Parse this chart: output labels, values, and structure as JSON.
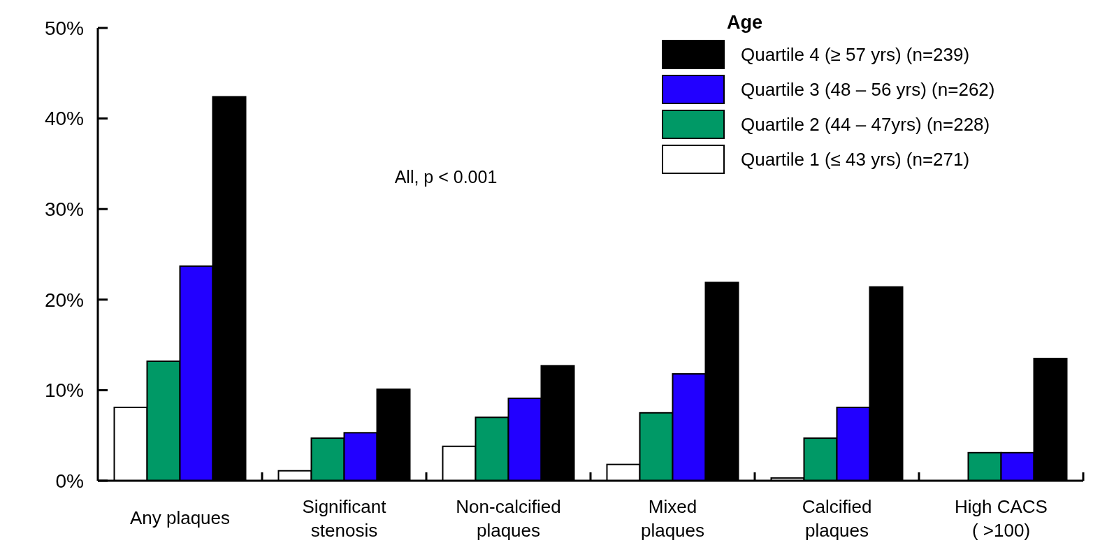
{
  "chart_data": {
    "type": "bar",
    "categories": [
      "Any plaques",
      "Significant\nstenosis",
      "Non-calcified\nplaques",
      "Mixed\nplaques",
      "Calcified\nplaques",
      "High CACS\n( >100)"
    ],
    "series": [
      {
        "name": "Quartile 1 (≤ 43 yrs) (n=271)",
        "color": "#ffffff",
        "values": [
          8.1,
          1.1,
          3.8,
          1.8,
          0.3,
          0
        ]
      },
      {
        "name": "Quartile 2 (44 – 47yrs) (n=228)",
        "color": "#009966",
        "values": [
          13.2,
          4.7,
          7.0,
          7.5,
          4.7,
          3.1
        ]
      },
      {
        "name": "Quartile 3 (48 – 56 yrs) (n=262)",
        "color": "#2200ff",
        "values": [
          23.7,
          5.3,
          9.1,
          11.8,
          8.1,
          3.1
        ]
      },
      {
        "name": "Quartile 4 (≥ 57 yrs) (n=239)",
        "color": "#000000",
        "values": [
          42.4,
          10.1,
          12.7,
          21.9,
          21.4,
          13.5
        ]
      }
    ],
    "ylim": [
      0,
      50
    ],
    "yticks": [
      {
        "value": 0,
        "label": "0%"
      },
      {
        "value": 10,
        "label": "10%"
      },
      {
        "value": 20,
        "label": "20%"
      },
      {
        "value": 30,
        "label": "30%"
      },
      {
        "value": 40,
        "label": "40%"
      },
      {
        "value": 50,
        "label": "50%"
      }
    ],
    "legend": "top right",
    "legend_title": "Age",
    "annotations": [
      "All, p < 0.001"
    ],
    "grid": false
  }
}
